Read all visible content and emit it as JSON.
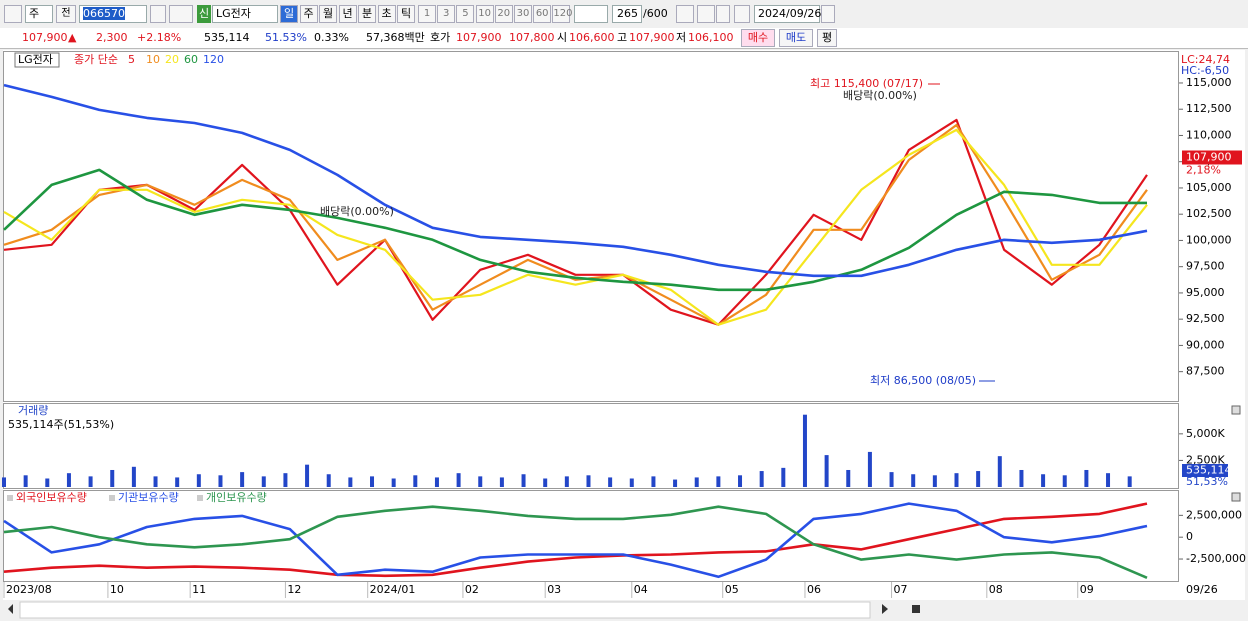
{
  "toolbar": {
    "period": "주",
    "prev": "전",
    "code": "066570",
    "badge": "신",
    "name": "LG전자",
    "intervals": [
      "일",
      "주",
      "월",
      "년",
      "분",
      "초",
      "틱"
    ],
    "counts": [
      1,
      3,
      5,
      10,
      20,
      30,
      60,
      120
    ],
    "view_count": 265,
    "view_total": "/600",
    "date": "2024/09/26"
  },
  "quote": {
    "price": "107,900",
    "arrow": "▲",
    "change": "2,300",
    "change_pct": "+2.18%",
    "volume": "535,114",
    "volume_ratio": "51.53%",
    "turnover": "0.33%",
    "amount": "57,368백만",
    "ask_label": "호가",
    "ask": "107,900",
    "bid": "107,800",
    "open_label": "시",
    "open": "106,600",
    "high_label": "고",
    "high": "107,900",
    "low_label": "저",
    "low": "106,100",
    "buy": "매수",
    "sell": "매도",
    "avg": "평"
  },
  "chart_data": [
    {
      "type": "line",
      "title": "LG전자",
      "ma_label": "종가 단순",
      "x": [
        0,
        11,
        22,
        33,
        44,
        55,
        66,
        77,
        88,
        99,
        110,
        121,
        132,
        143,
        154,
        165,
        176,
        187,
        198,
        209,
        220,
        231,
        242,
        253,
        264
      ],
      "xlim": [
        0,
        264
      ],
      "xticks": [
        {
          "value": 0,
          "label": "2023/08"
        },
        {
          "value": 24,
          "label": "10"
        },
        {
          "value": 43,
          "label": "11"
        },
        {
          "value": 65,
          "label": "12"
        },
        {
          "value": 84,
          "label": "2024/01"
        },
        {
          "value": 106,
          "label": "02"
        },
        {
          "value": 125,
          "label": "03"
        },
        {
          "value": 145,
          "label": "04"
        },
        {
          "value": 166,
          "label": "05"
        },
        {
          "value": 185,
          "label": "06"
        },
        {
          "value": 205,
          "label": "07"
        },
        {
          "value": 227,
          "label": "08"
        },
        {
          "value": 248,
          "label": "09"
        }
      ],
      "end_label": "09/26",
      "ylim": [
        84800,
        117950
      ],
      "yticks": [
        {
          "value": 87500,
          "label": "87,500"
        },
        {
          "value": 90000,
          "label": "90,000"
        },
        {
          "value": 92500,
          "label": "92,500"
        },
        {
          "value": 95000,
          "label": "95,000"
        },
        {
          "value": 97500,
          "label": "97,500"
        },
        {
          "value": 100000,
          "label": "100,000"
        },
        {
          "value": 102500,
          "label": "102,500"
        },
        {
          "value": 105000,
          "label": "105,000"
        },
        {
          "value": 107500,
          "label": "107,500"
        },
        {
          "value": 110000,
          "label": "110,000"
        },
        {
          "value": 112500,
          "label": "112,500"
        },
        {
          "value": 115000,
          "label": "115,000"
        }
      ],
      "series": [
        {
          "name": "5",
          "color": "#e0141e",
          "values": [
            99110,
            99580,
            104820,
            105290,
            102910,
            107200,
            102910,
            95780,
            100060,
            92440,
            97200,
            98630,
            96730,
            96730,
            93400,
            91970,
            96730,
            102440,
            100060,
            108620,
            111480,
            99110,
            95780,
            99580,
            106240
          ]
        },
        {
          "name": "10",
          "color": "#f08c1e",
          "values": [
            99580,
            101010,
            104340,
            105290,
            103390,
            105770,
            103870,
            98150,
            100060,
            93400,
            95780,
            98150,
            96250,
            96730,
            94350,
            91970,
            94820,
            101010,
            101010,
            107670,
            111000,
            103870,
            96250,
            98630,
            104820
          ]
        },
        {
          "name": "20",
          "color": "#f5e61e",
          "values": [
            102720,
            100060,
            104820,
            104820,
            102720,
            103870,
            103390,
            100530,
            99110,
            94350,
            94820,
            96730,
            95780,
            96730,
            95300,
            91970,
            93400,
            99110,
            104820,
            108150,
            110530,
            105290,
            97680,
            97680,
            103390
          ]
        },
        {
          "name": "60",
          "color": "#1e9640",
          "values": [
            101010,
            105290,
            106720,
            103870,
            102440,
            103390,
            102910,
            102150,
            101200,
            100060,
            98150,
            97010,
            96440,
            96060,
            95780,
            95300,
            95300,
            96060,
            97200,
            99300,
            102440,
            104630,
            104340,
            103580,
            103580
          ]
        },
        {
          "name": "120",
          "color": "#2850e6",
          "values": [
            114800,
            113670,
            112430,
            111670,
            111190,
            110240,
            108620,
            106240,
            103390,
            101200,
            100340,
            100060,
            99770,
            99390,
            98630,
            97680,
            97010,
            96630,
            96630,
            97680,
            99110,
            100060,
            99770,
            100060,
            100920
          ]
        }
      ],
      "annotations": [
        "최고 115,400 (07/17)",
        "배당락(0.00%)",
        "배당락(0.00%)",
        "최저 86,500 (08/05)"
      ],
      "right_labels": [
        "LC:24,74",
        "HC:-6,50"
      ],
      "last": {
        "value": 107900,
        "label": "107,900"
      },
      "last_change": "2,18%"
    },
    {
      "type": "bar",
      "title": "거래량",
      "subtitle": "535,114주(51,53%)",
      "color": "#2346c8",
      "x": [
        0,
        5,
        10,
        15,
        20,
        25,
        30,
        35,
        40,
        45,
        50,
        55,
        60,
        65,
        70,
        75,
        80,
        85,
        90,
        95,
        100,
        105,
        110,
        115,
        120,
        125,
        130,
        135,
        140,
        145,
        150,
        155,
        160,
        165,
        170,
        175,
        180,
        185,
        190,
        195,
        200,
        205,
        210,
        215,
        220,
        225,
        230,
        235,
        240,
        245,
        250,
        255,
        260
      ],
      "xlim": [
        0,
        264
      ],
      "values": [
        900000,
        1100000,
        800000,
        1300000,
        1000000,
        1600000,
        1900000,
        1000000,
        900000,
        1200000,
        1100000,
        1400000,
        1000000,
        1300000,
        2100000,
        1200000,
        900000,
        1000000,
        800000,
        1100000,
        900000,
        1300000,
        1000000,
        900000,
        1200000,
        800000,
        1000000,
        1100000,
        900000,
        800000,
        1000000,
        700000,
        900000,
        1000000,
        1100000,
        1500000,
        1800000,
        6800000,
        3000000,
        1600000,
        3300000,
        1400000,
        1200000,
        1100000,
        1300000,
        1500000,
        2900000,
        1600000,
        1200000,
        1100000,
        1600000,
        1300000,
        1000000
      ],
      "ylim": [
        0,
        7900000
      ],
      "yticks": [
        {
          "value": 2500000,
          "label": "2,500K"
        },
        {
          "value": 5000000,
          "label": "5,000K"
        }
      ],
      "last_label": "535,114",
      "last_ratio": "51,53%"
    },
    {
      "type": "line",
      "x": [
        0,
        11,
        22,
        33,
        44,
        55,
        66,
        77,
        88,
        99,
        110,
        121,
        132,
        143,
        154,
        165,
        176,
        187,
        198,
        209,
        220,
        231,
        242,
        253,
        264
      ],
      "xlim": [
        0,
        264
      ],
      "ylim": [
        -4900000,
        5400000
      ],
      "yticks": [
        {
          "value": -2500000,
          "label": "-2,500,000"
        },
        0,
        {
          "value": 2500000,
          "label": "2,500,000"
        }
      ],
      "series": [
        {
          "name": "외국인보유수량",
          "color": "#e0141e",
          "values": [
            -3950000,
            -3490000,
            -3260000,
            -3490000,
            -3370000,
            -3490000,
            -3720000,
            -4300000,
            -4420000,
            -4300000,
            -3490000,
            -2790000,
            -2330000,
            -2090000,
            -1980000,
            -1740000,
            -1630000,
            -810000,
            -1400000,
            -230000,
            930000,
            2090000,
            2330000,
            2670000,
            3840000
          ]
        },
        {
          "name": "기관보유수량",
          "color": "#2850e6",
          "values": [
            1860000,
            -1740000,
            -810000,
            1160000,
            2090000,
            2440000,
            930000,
            -4300000,
            -3720000,
            -3950000,
            -2330000,
            -1980000,
            -1980000,
            -1980000,
            -3140000,
            -4530000,
            -2560000,
            2090000,
            2670000,
            3840000,
            3020000,
            0,
            -580000,
            120000,
            1280000
          ]
        },
        {
          "name": "개인보유수량",
          "color": "#2e9650",
          "values": [
            580000,
            1160000,
            0,
            -810000,
            -1160000,
            -810000,
            -230000,
            2330000,
            3020000,
            3490000,
            3020000,
            2440000,
            2090000,
            2090000,
            2560000,
            3490000,
            2670000,
            -810000,
            -2560000,
            -1980000,
            -2560000,
            -1980000,
            -1740000,
            -2330000,
            -4650000
          ]
        }
      ]
    }
  ]
}
